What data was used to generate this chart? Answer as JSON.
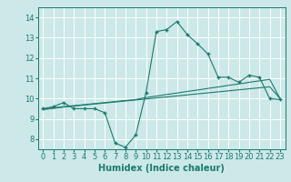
{
  "xlabel": "Humidex (Indice chaleur)",
  "bg_color": "#cce8e8",
  "grid_color": "#ffffff",
  "line_color": "#1a7a6e",
  "xlim": [
    -0.5,
    23.5
  ],
  "ylim": [
    7.5,
    14.5
  ],
  "xticks": [
    0,
    1,
    2,
    3,
    4,
    5,
    6,
    7,
    8,
    9,
    10,
    11,
    12,
    13,
    14,
    15,
    16,
    17,
    18,
    19,
    20,
    21,
    22,
    23
  ],
  "yticks": [
    8,
    9,
    10,
    11,
    12,
    13,
    14
  ],
  "line_main_x": [
    0,
    1,
    2,
    3,
    4,
    5,
    6,
    7,
    8,
    9,
    10,
    11,
    12,
    13,
    14,
    15,
    16,
    17,
    18,
    19,
    20,
    21,
    22,
    23
  ],
  "line_main_y": [
    9.5,
    9.6,
    9.8,
    9.5,
    9.5,
    9.5,
    9.3,
    7.8,
    7.6,
    8.2,
    10.3,
    13.3,
    13.4,
    13.8,
    13.15,
    12.7,
    12.2,
    11.05,
    11.05,
    10.8,
    11.15,
    11.05,
    10.0,
    9.95
  ],
  "line_reg1_x": [
    0,
    1,
    2,
    3,
    4,
    5,
    6,
    7,
    8,
    9,
    10,
    11,
    12,
    13,
    14,
    15,
    16,
    17,
    18,
    19,
    20,
    21,
    22,
    23
  ],
  "line_reg1_y": [
    9.45,
    9.52,
    9.58,
    9.63,
    9.68,
    9.73,
    9.78,
    9.83,
    9.88,
    9.93,
    9.98,
    10.03,
    10.08,
    10.13,
    10.18,
    10.23,
    10.28,
    10.33,
    10.38,
    10.43,
    10.48,
    10.53,
    10.58,
    10.0
  ],
  "line_reg2_x": [
    0,
    1,
    2,
    3,
    4,
    5,
    6,
    7,
    8,
    9,
    10,
    11,
    12,
    13,
    14,
    15,
    16,
    17,
    18,
    19,
    20,
    21,
    22,
    23
  ],
  "line_reg2_y": [
    9.48,
    9.54,
    9.6,
    9.65,
    9.7,
    9.75,
    9.8,
    9.85,
    9.9,
    9.95,
    10.05,
    10.12,
    10.2,
    10.27,
    10.35,
    10.42,
    10.5,
    10.57,
    10.65,
    10.72,
    10.8,
    10.87,
    10.95,
    10.0
  ],
  "marker": "+",
  "markersize": 3,
  "linewidth": 0.8,
  "xlabel_fontsize": 7,
  "tick_fontsize": 6
}
